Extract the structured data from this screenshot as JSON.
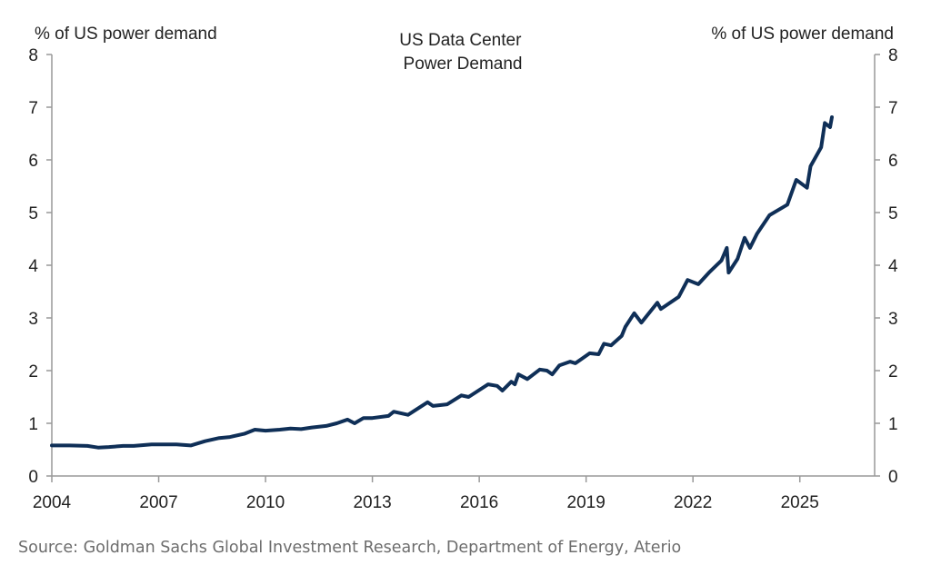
{
  "chart_data": {
    "type": "line",
    "title": "US Data Center\nPower Demand",
    "ylabel_left": "% of US power demand",
    "ylabel_right": "% of US power demand",
    "xlabel": "",
    "xlim": [
      2004,
      2027.1
    ],
    "ylim": [
      0,
      8
    ],
    "x_ticks": [
      2004,
      2007,
      2010,
      2013,
      2016,
      2019,
      2022,
      2025
    ],
    "y_ticks": [
      0,
      1,
      2,
      3,
      4,
      5,
      6,
      7,
      8
    ],
    "grid": false,
    "line_color": "#0f2f57",
    "series": [
      {
        "x": [
          2004.0,
          2004.5,
          2005.0,
          2005.3,
          2005.6,
          2006.0,
          2006.3,
          2006.8,
          2007.2,
          2007.5,
          2007.9,
          2008.3,
          2008.7,
          2009.0,
          2009.4,
          2009.7,
          2010.0,
          2010.4,
          2010.7,
          2011.0,
          2011.3,
          2011.7,
          2012.0,
          2012.3,
          2012.5,
          2012.75,
          2013.0,
          2013.45,
          2013.6,
          2014.0,
          2014.55,
          2014.7,
          2015.1,
          2015.5,
          2015.7,
          2016.25,
          2016.5,
          2016.65,
          2016.9,
          2017.0,
          2017.1,
          2017.35,
          2017.7,
          2017.9,
          2018.05,
          2018.25,
          2018.55,
          2018.7,
          2019.1,
          2019.35,
          2019.5,
          2019.7,
          2020.0,
          2020.1,
          2020.35,
          2020.55,
          2021.0,
          2021.1,
          2021.6,
          2021.85,
          2022.15,
          2022.45,
          2022.8,
          2022.95,
          2023.0,
          2023.25,
          2023.45,
          2023.6,
          2023.8,
          2024.15,
          2024.65,
          2024.9,
          2025.2,
          2025.3,
          2025.6,
          2025.7,
          2025.85,
          2025.9
        ],
        "y": [
          0.58,
          0.58,
          0.57,
          0.54,
          0.55,
          0.57,
          0.57,
          0.6,
          0.6,
          0.6,
          0.58,
          0.66,
          0.72,
          0.74,
          0.8,
          0.88,
          0.86,
          0.88,
          0.9,
          0.89,
          0.92,
          0.95,
          1.0,
          1.07,
          1.0,
          1.1,
          1.1,
          1.14,
          1.22,
          1.16,
          1.4,
          1.33,
          1.36,
          1.53,
          1.5,
          1.74,
          1.71,
          1.62,
          1.79,
          1.74,
          1.93,
          1.84,
          2.02,
          2.0,
          1.93,
          2.1,
          2.17,
          2.14,
          2.33,
          2.31,
          2.51,
          2.48,
          2.66,
          2.83,
          3.09,
          2.91,
          3.29,
          3.17,
          3.4,
          3.72,
          3.64,
          3.86,
          4.09,
          4.33,
          3.86,
          4.12,
          4.52,
          4.33,
          4.6,
          4.95,
          5.15,
          5.62,
          5.47,
          5.88,
          6.24,
          6.7,
          6.62,
          6.81
        ]
      }
    ]
  },
  "source": "Source: Goldman Sachs Global Investment Research, Department of Energy, Aterio"
}
